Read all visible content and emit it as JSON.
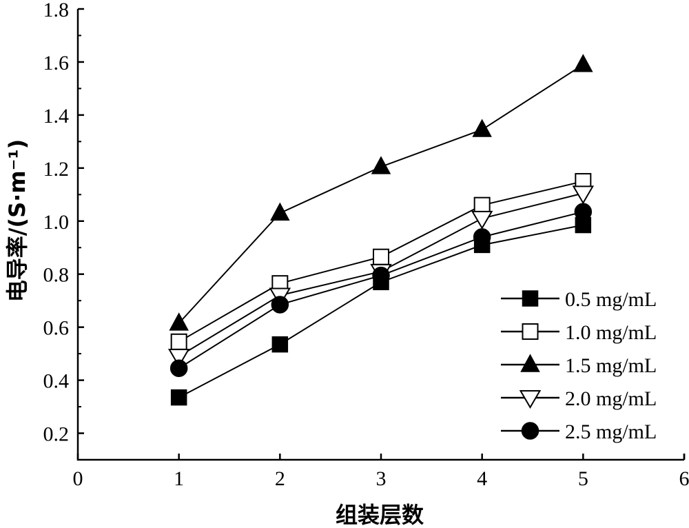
{
  "chart_data": {
    "type": "line",
    "title": "",
    "xlabel": "组装层数",
    "ylabel": "电导率/(S·m⁻¹)",
    "xlim": [
      0,
      6
    ],
    "ylim": [
      0.1,
      1.8
    ],
    "x_ticks": [
      0,
      1,
      2,
      3,
      4,
      5,
      6
    ],
    "y_ticks": [
      0.2,
      0.4,
      0.6,
      0.8,
      1.0,
      1.2,
      1.4,
      1.6,
      1.8
    ],
    "x_tick_labels": [
      "0",
      "1",
      "2",
      "3",
      "4",
      "5",
      "6"
    ],
    "y_tick_labels": [
      "0.2",
      "0.4",
      "0.6",
      "0.8",
      "1.0",
      "1.2",
      "1.4",
      "1.6",
      "1.8"
    ],
    "grid": false,
    "legend_position": "bottom-right",
    "x": [
      1,
      2,
      3,
      4,
      5
    ],
    "series": [
      {
        "name": "0.5 mg/mL",
        "marker": "square-filled",
        "values": [
          0.335,
          0.535,
          0.77,
          0.91,
          0.985
        ]
      },
      {
        "name": "1.0 mg/mL",
        "marker": "square-open",
        "values": [
          0.545,
          0.765,
          0.865,
          1.06,
          1.15
        ]
      },
      {
        "name": "1.5 mg/mL",
        "marker": "triangle-up-filled",
        "values": [
          0.615,
          1.03,
          1.205,
          1.345,
          1.59
        ]
      },
      {
        "name": "2.0 mg/mL",
        "marker": "triangle-down-open",
        "values": [
          0.49,
          0.72,
          0.81,
          1.01,
          1.105
        ]
      },
      {
        "name": "2.5 mg/mL",
        "marker": "circle-filled",
        "values": [
          0.445,
          0.685,
          0.795,
          0.94,
          1.035
        ]
      }
    ]
  }
}
